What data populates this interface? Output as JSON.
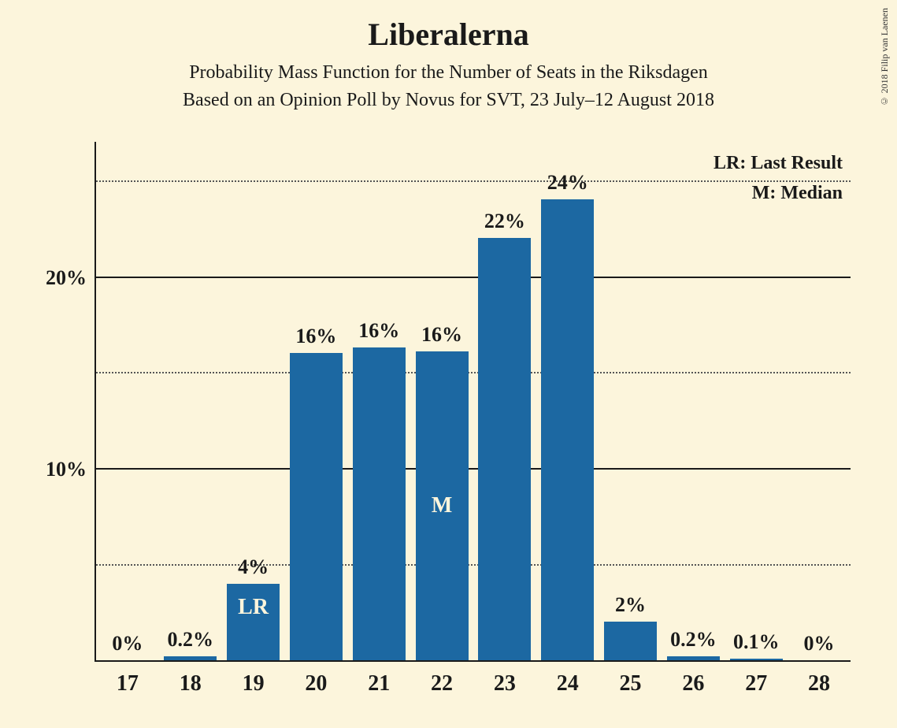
{
  "title": "Liberalerna",
  "subtitle1": "Probability Mass Function for the Number of Seats in the Riksdagen",
  "subtitle2": "Based on an Opinion Poll by Novus for SVT, 23 July–12 August 2018",
  "copyright": "© 2018 Filip van Laenen",
  "legend": {
    "lr": "LR: Last Result",
    "m": "M: Median"
  },
  "chart": {
    "type": "bar",
    "bar_color": "#1c68a2",
    "background_color": "#fcf5dc",
    "text_color": "#1a1a1a",
    "title_fontsize": 40,
    "subtitle_fontsize": 24,
    "label_fontsize": 26,
    "xtick_fontsize": 28,
    "bar_width_ratio": 0.84,
    "ylim": [
      0,
      27
    ],
    "y_major_ticks": [
      10,
      20
    ],
    "y_minor_ticks": [
      5,
      15,
      25
    ],
    "y_major_labels": [
      "10%",
      "20%"
    ],
    "categories": [
      "17",
      "18",
      "19",
      "20",
      "21",
      "22",
      "23",
      "24",
      "25",
      "26",
      "27",
      "28"
    ],
    "values": [
      0,
      0.2,
      4,
      16,
      16.3,
      16.1,
      22,
      24,
      2,
      0.2,
      0.1,
      0
    ],
    "value_labels": [
      "0%",
      "0.2%",
      "4%",
      "16%",
      "16%",
      "16%",
      "22%",
      "24%",
      "2%",
      "0.2%",
      "0.1%",
      "0%"
    ],
    "annotations": {
      "19": {
        "text": "LR",
        "pos": "top"
      },
      "22": {
        "text": "M",
        "pos": "middle"
      }
    }
  }
}
